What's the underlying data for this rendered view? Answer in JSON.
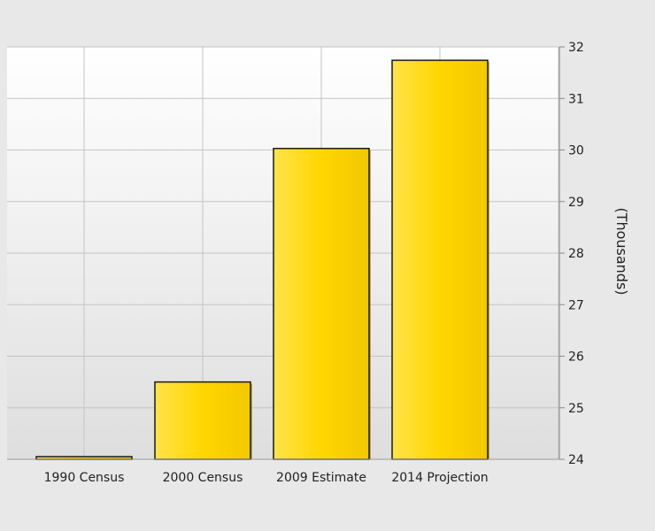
{
  "chart_data": {
    "type": "bar",
    "categories": [
      "1990 Census",
      "2000 Census",
      "2009 Estimate",
      "2014 Projection"
    ],
    "values": [
      24.05,
      25.5,
      30.03,
      31.74
    ],
    "ylabel": "(Thousands)",
    "ylim": [
      24,
      32
    ],
    "yticks": [
      "24",
      "25",
      "26",
      "27",
      "28",
      "29",
      "30",
      "31",
      "32"
    ],
    "y_axis_side": "right",
    "grid": true,
    "bar_color": "#ffd700",
    "bar_edge_color": "#1a1a1a"
  }
}
